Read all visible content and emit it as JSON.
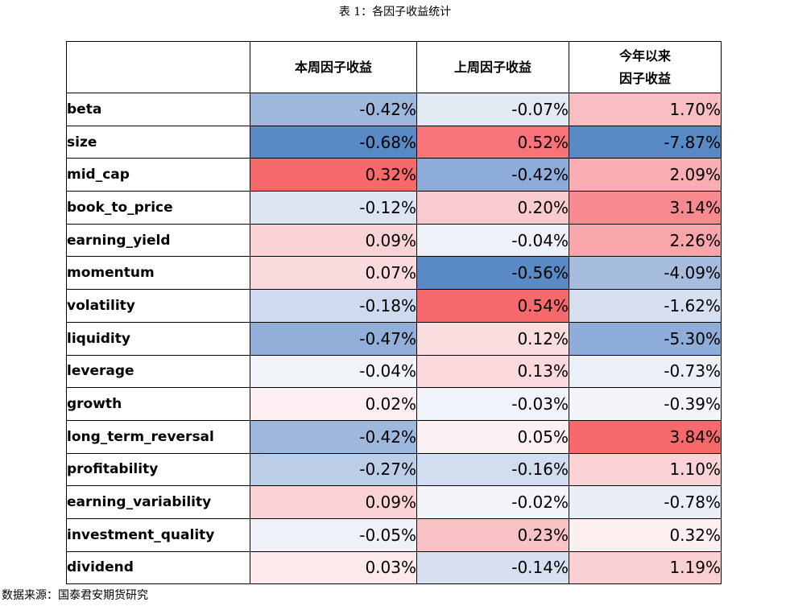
{
  "caption": "表 1：各因子收益统计",
  "headers": {
    "factor": "",
    "this_week": "本周因子收益",
    "last_week": "上周因子收益",
    "ytd_line1": "今年以来",
    "ytd_line2": "因子收益"
  },
  "rows": [
    {
      "name": "beta",
      "this_week": "-0.42%",
      "last_week": "-0.07%",
      "ytd": "1.70%",
      "colors": [
        "#9db7dd",
        "#e3eaf4",
        "#f9bec2"
      ]
    },
    {
      "name": "size",
      "this_week": "-0.68%",
      "last_week": "0.52%",
      "ytd": "-7.87%",
      "colors": [
        "#5a8ac6",
        "#f8737a",
        "#5a8ac6"
      ]
    },
    {
      "name": "mid_cap",
      "this_week": "0.32%",
      "last_week": "-0.42%",
      "ytd": "2.09%",
      "colors": [
        "#f8696b",
        "#8eacd9",
        "#f9aeb2"
      ]
    },
    {
      "name": "book_to_price",
      "this_week": "-0.12%",
      "last_week": "0.20%",
      "ytd": "3.14%",
      "colors": [
        "#dde5f2",
        "#facbce",
        "#f88a8f"
      ]
    },
    {
      "name": "earning_yield",
      "this_week": "0.09%",
      "last_week": "-0.04%",
      "ytd": "2.26%",
      "colors": [
        "#fad3d6",
        "#eef2f8",
        "#f9a6aa"
      ]
    },
    {
      "name": "momentum",
      "this_week": "0.07%",
      "last_week": "-0.56%",
      "ytd": "-4.09%",
      "colors": [
        "#fbdadd",
        "#5a8ac6",
        "#a6bde0"
      ]
    },
    {
      "name": "volatility",
      "this_week": "-0.18%",
      "last_week": "0.54%",
      "ytd": "-1.62%",
      "colors": [
        "#cfdaee",
        "#f8696b",
        "#d7e0f0"
      ]
    },
    {
      "name": "liquidity",
      "this_week": "-0.47%",
      "last_week": "0.12%",
      "ytd": "-5.30%",
      "colors": [
        "#92afda",
        "#fbdcdf",
        "#8fadd9"
      ]
    },
    {
      "name": "leverage",
      "this_week": "-0.04%",
      "last_week": "0.13%",
      "ytd": "-0.73%",
      "colors": [
        "#f1f4f9",
        "#fbd9dc",
        "#ebeff7"
      ]
    },
    {
      "name": "growth",
      "this_week": "0.02%",
      "last_week": "-0.03%",
      "ytd": "-0.39%",
      "colors": [
        "#fdeff1",
        "#f0f3f9",
        "#f3f5fa"
      ]
    },
    {
      "name": "long_term_reversal",
      "this_week": "-0.42%",
      "last_week": "0.05%",
      "ytd": "3.84%",
      "colors": [
        "#9db7dd",
        "#fdf0f2",
        "#f8696b"
      ]
    },
    {
      "name": "profitability",
      "this_week": "-0.27%",
      "last_week": "-0.16%",
      "ytd": "1.10%",
      "colors": [
        "#bccde8",
        "#d2ddef",
        "#fbd3d6"
      ]
    },
    {
      "name": "earning_variability",
      "this_week": "0.09%",
      "last_week": "-0.02%",
      "ytd": "-0.78%",
      "colors": [
        "#fad3d6",
        "#f3f5fa",
        "#eaeff7"
      ]
    },
    {
      "name": "investment_quality",
      "this_week": "-0.05%",
      "last_week": "0.23%",
      "ytd": "0.32%",
      "colors": [
        "#eef2f8",
        "#f9c2c5",
        "#fdeef0"
      ]
    },
    {
      "name": "dividend",
      "this_week": "0.03%",
      "last_week": "-0.14%",
      "ytd": "1.19%",
      "colors": [
        "#fde9eb",
        "#d6e0f0",
        "#fbd0d3"
      ]
    }
  ],
  "source": "数据来源：国泰君安期货研究"
}
